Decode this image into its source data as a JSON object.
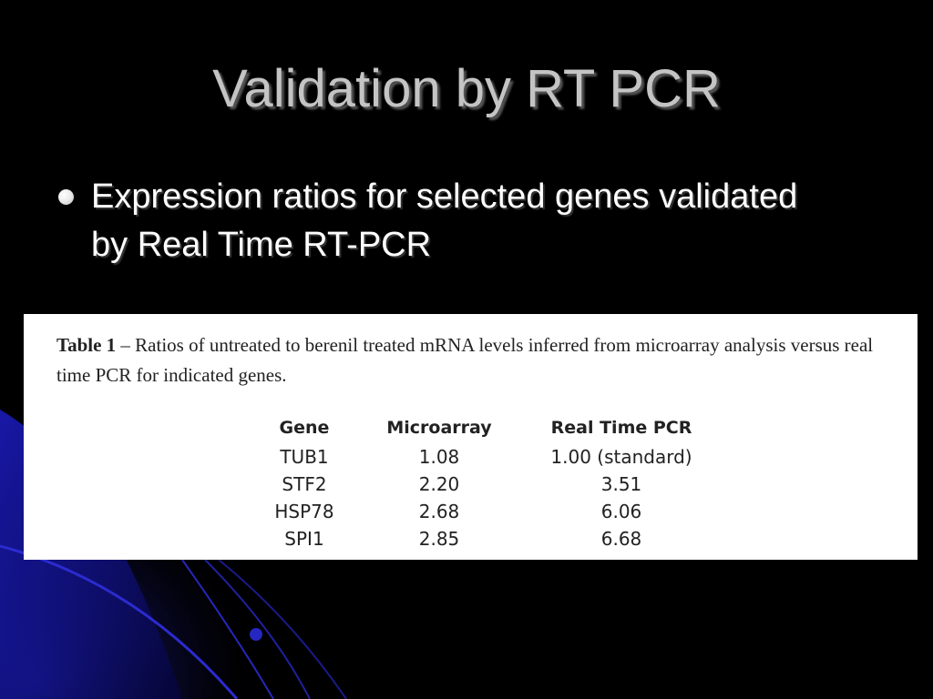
{
  "slide": {
    "title": "Validation by RT PCR",
    "bullets": [
      {
        "text": "Expression ratios for selected genes validated by Real Time RT-PCR"
      }
    ]
  },
  "table_figure": {
    "caption_label": "Table 1",
    "caption_text": " – Ratios of untreated to berenil treated mRNA levels inferred from microarray analysis versus real time PCR for indicated genes.",
    "headers": [
      "Gene",
      "Microarray",
      "Real Time PCR"
    ],
    "rows": [
      [
        "TUB1",
        "1.08",
        "1.00 (standard)"
      ],
      [
        "STF2",
        "2.20",
        "3.51"
      ],
      [
        "HSP78",
        "2.68",
        "6.06"
      ],
      [
        "SPI1",
        "2.85",
        "6.68"
      ]
    ]
  },
  "colors": {
    "background": "#000000",
    "accent_blue": "#1a1aa8",
    "title_text": "#c4c4c4",
    "body_text": "#ffffff"
  }
}
